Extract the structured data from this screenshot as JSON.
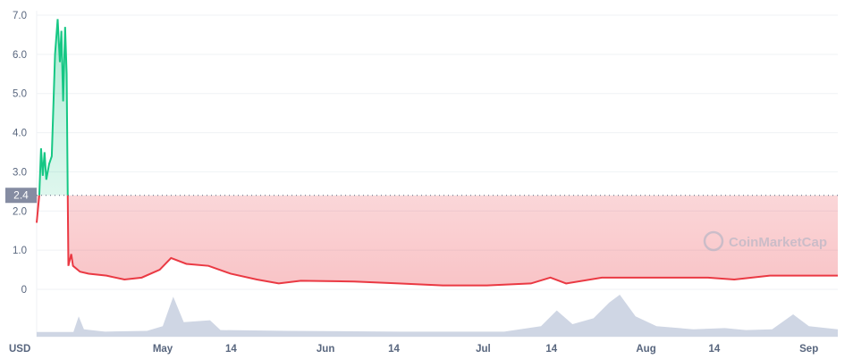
{
  "chart_data": {
    "type": "area",
    "currency_label": "USD",
    "watermark": "CoinMarketCap",
    "baseline": {
      "value": 2.4,
      "label": "2.4"
    },
    "ylim": [
      0,
      7
    ],
    "y_ticks": [
      "0",
      "1.0",
      "2.0",
      "3.0",
      "4.0",
      "5.0",
      "6.0",
      "7.0"
    ],
    "x_range": [
      "04-07 00:00",
      "09-06 12:00"
    ],
    "x_ticks": [
      {
        "date": "05-01",
        "label": "May"
      },
      {
        "date": "05-14",
        "label": "14"
      },
      {
        "date": "06-01",
        "label": "Jun"
      },
      {
        "date": "06-14",
        "label": "14"
      },
      {
        "date": "07-01",
        "label": "Jul"
      },
      {
        "date": "07-14",
        "label": "14"
      },
      {
        "date": "08-01",
        "label": "Aug"
      },
      {
        "date": "08-14",
        "label": "14"
      },
      {
        "date": "09-01",
        "label": "Sep"
      }
    ],
    "grid": true,
    "colors": {
      "up": "#16c784",
      "down": "#ea3943",
      "volume": "#cfd6e4"
    },
    "series": [
      {
        "values": [
          [
            "04-07 00:00",
            1.7
          ],
          [
            "04-07 12:00",
            2.4
          ],
          [
            "04-07 20:00",
            3.6
          ],
          [
            "04-08 04:00",
            2.9
          ],
          [
            "04-08 12:00",
            3.5
          ],
          [
            "04-08 20:00",
            2.8
          ],
          [
            "04-09 09:00",
            3.2
          ],
          [
            "04-09 21:00",
            3.4
          ],
          [
            "04-10 12:00",
            6.0
          ],
          [
            "04-11 00:00",
            6.9
          ],
          [
            "04-11 10:00",
            5.8
          ],
          [
            "04-11 17:00",
            6.6
          ],
          [
            "04-12 01:00",
            4.8
          ],
          [
            "04-12 10:00",
            6.7
          ],
          [
            "04-12 17:00",
            5.5
          ],
          [
            "04-12 22:00",
            2.4
          ],
          [
            "04-13 01:00",
            0.6
          ],
          [
            "04-13 14:00",
            0.9
          ],
          [
            "04-13 22:00",
            0.6
          ],
          [
            "04-15 06:00",
            0.45
          ],
          [
            "04-16 22:00",
            0.4
          ],
          [
            "04-20 07:00",
            0.35
          ],
          [
            "04-23 17:00",
            0.25
          ],
          [
            "04-27 00:00",
            0.3
          ],
          [
            "04-30 10:00",
            0.5
          ],
          [
            "05-02 14:00",
            0.8
          ],
          [
            "05-05 12:00",
            0.65
          ],
          [
            "05-09 17:00",
            0.6
          ],
          [
            "05-13 22:00",
            0.4
          ],
          [
            "05-18 22:00",
            0.25
          ],
          [
            "05-23 02:00",
            0.15
          ],
          [
            "05-27 07:00",
            0.22
          ],
          [
            "06-06 10:00",
            0.2
          ],
          [
            "06-14 22:00",
            0.15
          ],
          [
            "06-23 07:00",
            0.1
          ],
          [
            "07-01 17:00",
            0.1
          ],
          [
            "07-10 02:00",
            0.15
          ],
          [
            "07-13 19:00",
            0.3
          ],
          [
            "07-16 19:00",
            0.15
          ],
          [
            "07-23 14:00",
            0.3
          ],
          [
            "07-30 07:00",
            0.3
          ],
          [
            "08-06 00:00",
            0.3
          ],
          [
            "08-12 19:00",
            0.3
          ],
          [
            "08-17 19:00",
            0.25
          ],
          [
            "08-24 14:00",
            0.35
          ],
          [
            "08-29 14:00",
            0.35
          ],
          [
            "09-04 19:00",
            0.35
          ],
          [
            "09-06 12:00",
            0.35
          ]
        ]
      }
    ],
    "volume_relative": [
      [
        "04-07 00:00",
        0.05
      ],
      [
        "04-14 00:00",
        0.05
      ],
      [
        "04-15 00:00",
        0.45
      ],
      [
        "04-16 00:00",
        0.12
      ],
      [
        "04-20 00:00",
        0.06
      ],
      [
        "04-28 00:00",
        0.08
      ],
      [
        "05-01 00:00",
        0.2
      ],
      [
        "05-03 00:00",
        0.95
      ],
      [
        "05-05 00:00",
        0.3
      ],
      [
        "05-10 00:00",
        0.35
      ],
      [
        "05-12 00:00",
        0.1
      ],
      [
        "05-25 00:00",
        0.08
      ],
      [
        "06-15 00:00",
        0.06
      ],
      [
        "07-05 00:00",
        0.06
      ],
      [
        "07-12 00:00",
        0.2
      ],
      [
        "07-15 00:00",
        0.6
      ],
      [
        "07-18 00:00",
        0.25
      ],
      [
        "07-22 00:00",
        0.4
      ],
      [
        "07-25 00:00",
        0.8
      ],
      [
        "07-27 00:00",
        1.0
      ],
      [
        "07-30 00:00",
        0.45
      ],
      [
        "08-03 00:00",
        0.2
      ],
      [
        "08-10 00:00",
        0.12
      ],
      [
        "08-16 00:00",
        0.15
      ],
      [
        "08-20 00:00",
        0.1
      ],
      [
        "08-25 00:00",
        0.12
      ],
      [
        "08-29 00:00",
        0.5
      ],
      [
        "09-01 00:00",
        0.2
      ],
      [
        "09-06 12:00",
        0.12
      ]
    ]
  }
}
